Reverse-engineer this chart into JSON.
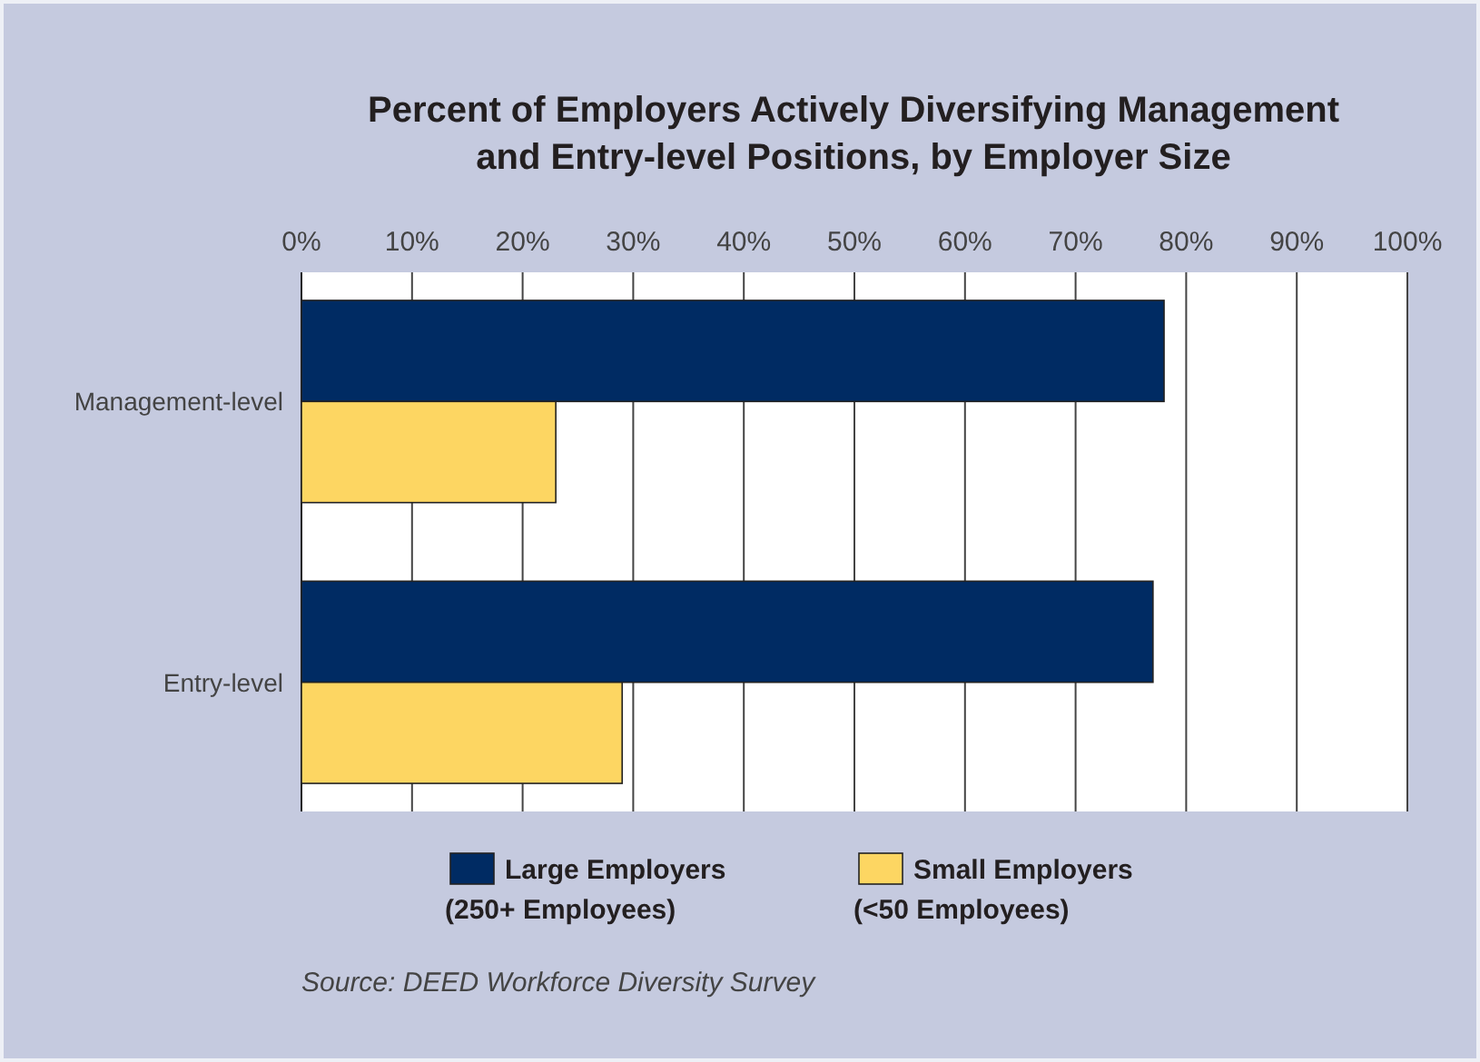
{
  "chart_data": {
    "type": "bar",
    "orientation": "horizontal",
    "title": "Percent of Employers Actively Diversifying Management\nand Entry-level Positions, by Employer Size",
    "categories": [
      "Management-level",
      "Entry-level"
    ],
    "series": [
      {
        "name": "Large Employers\n(250+ Employees)",
        "color": "#002b63",
        "values": [
          78,
          77
        ]
      },
      {
        "name": "Small Employers\n(<50 Employees)",
        "color": "#fdd662",
        "values": [
          23,
          29
        ]
      }
    ],
    "xlim": [
      0,
      100
    ],
    "xticks": [
      {
        "value": 0,
        "label": "0%"
      },
      {
        "value": 10,
        "label": "10%"
      },
      {
        "value": 20,
        "label": "20%"
      },
      {
        "value": 30,
        "label": "30%"
      },
      {
        "value": 40,
        "label": "40%"
      },
      {
        "value": 50,
        "label": "50%"
      },
      {
        "value": 60,
        "label": "60%"
      },
      {
        "value": 70,
        "label": "70%"
      },
      {
        "value": 80,
        "label": "80%"
      },
      {
        "value": 90,
        "label": "90%"
      },
      {
        "value": 100,
        "label": "100%"
      }
    ],
    "grid": "x",
    "legend": "bottom",
    "annotations": [
      "Source: DEED Workforce Diversity Survey"
    ]
  }
}
